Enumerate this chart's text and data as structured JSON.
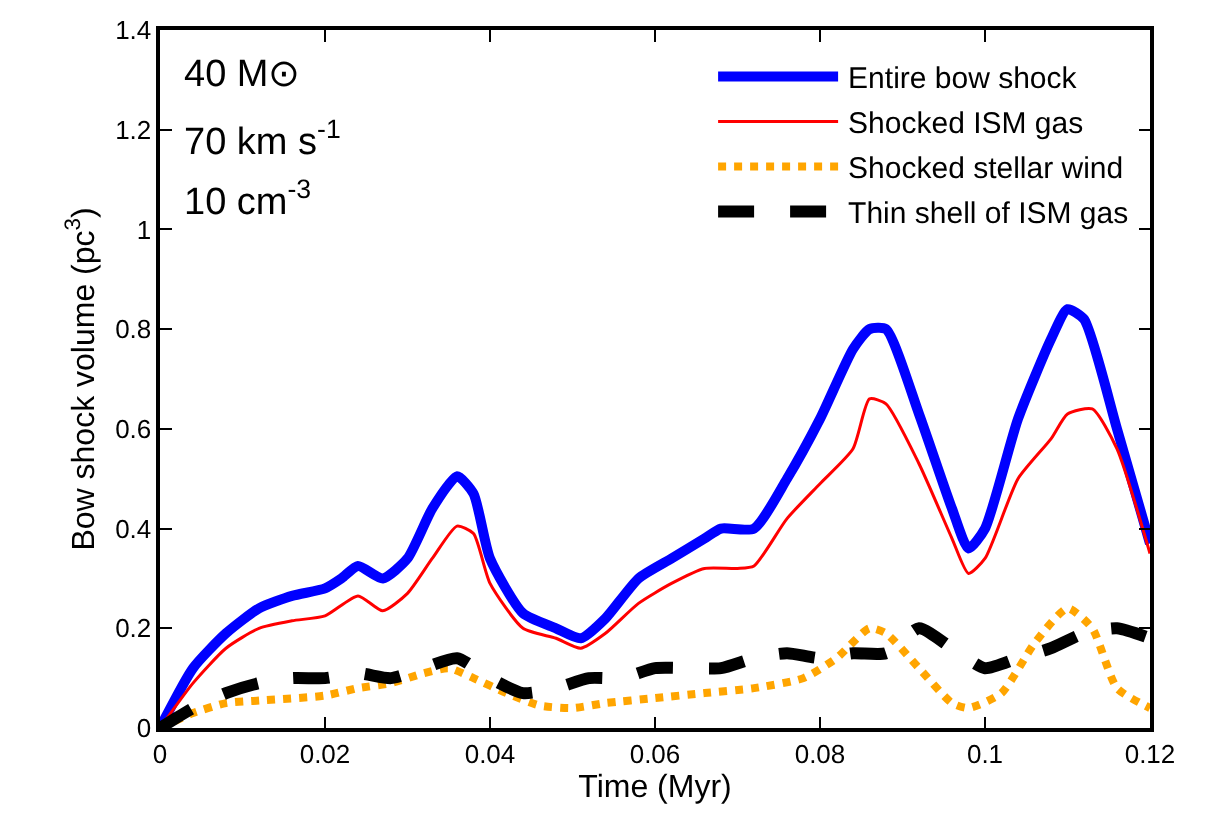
{
  "chart_data": {
    "type": "line",
    "xlabel": "Time (Myr)",
    "ylabel": "Bow shock volume (pc$^{3}$)",
    "xlim": [
      0,
      0.12
    ],
    "xticks": [
      0,
      0.02,
      0.04,
      0.06,
      0.08,
      0.1,
      0.12
    ],
    "ylim": [
      0,
      1.4
    ],
    "yticks": [
      0,
      0.2,
      0.4,
      0.6,
      0.8,
      1,
      1.2,
      1.4
    ],
    "legend": "top right",
    "marker": "none",
    "annotations": [
      "40 M⊙",
      "70 km s$^{-1}$",
      "10 cm$^{-3}$"
    ],
    "series": [
      {
        "name": "Entire bow shock",
        "color": "#0000ff",
        "line_style": "solid",
        "x": [
          0,
          0.004,
          0.008,
          0.012,
          0.016,
          0.02,
          0.022,
          0.024,
          0.027,
          0.03,
          0.033,
          0.036,
          0.038,
          0.04,
          0.044,
          0.048,
          0.051,
          0.054,
          0.058,
          0.062,
          0.066,
          0.068,
          0.072,
          0.076,
          0.08,
          0.084,
          0.086,
          0.088,
          0.092,
          0.096,
          0.098,
          0.1,
          0.104,
          0.108,
          0.11,
          0.112,
          0.116,
          0.12
        ],
        "values": [
          0,
          0.12,
          0.19,
          0.24,
          0.265,
          0.28,
          0.3,
          0.325,
          0.3,
          0.34,
          0.44,
          0.505,
          0.47,
          0.34,
          0.23,
          0.2,
          0.18,
          0.22,
          0.3,
          0.34,
          0.38,
          0.4,
          0.4,
          0.5,
          0.62,
          0.76,
          0.8,
          0.8,
          0.63,
          0.44,
          0.36,
          0.4,
          0.62,
          0.78,
          0.84,
          0.82,
          0.6,
          0.37
        ]
      },
      {
        "name": "Shocked ISM gas",
        "color": "#ff0000",
        "line_style": "solid",
        "x": [
          0,
          0.004,
          0.008,
          0.012,
          0.016,
          0.02,
          0.024,
          0.027,
          0.03,
          0.033,
          0.036,
          0.038,
          0.04,
          0.044,
          0.048,
          0.051,
          0.054,
          0.058,
          0.062,
          0.066,
          0.07,
          0.072,
          0.076,
          0.08,
          0.084,
          0.086,
          0.088,
          0.092,
          0.096,
          0.098,
          0.1,
          0.104,
          0.108,
          0.11,
          0.113,
          0.116,
          0.12
        ],
        "values": [
          0,
          0.09,
          0.16,
          0.2,
          0.215,
          0.225,
          0.265,
          0.235,
          0.27,
          0.34,
          0.405,
          0.39,
          0.29,
          0.2,
          0.18,
          0.16,
          0.19,
          0.25,
          0.29,
          0.32,
          0.32,
          0.325,
          0.42,
          0.49,
          0.56,
          0.66,
          0.65,
          0.53,
          0.38,
          0.31,
          0.34,
          0.5,
          0.58,
          0.63,
          0.64,
          0.56,
          0.35
        ]
      },
      {
        "name": "Shocked stellar wind",
        "color": "#ffa500",
        "line_style": "dotted",
        "x": [
          0,
          0.004,
          0.008,
          0.012,
          0.02,
          0.024,
          0.028,
          0.032,
          0.035,
          0.038,
          0.042,
          0.046,
          0.05,
          0.054,
          0.06,
          0.066,
          0.072,
          0.078,
          0.082,
          0.086,
          0.088,
          0.092,
          0.096,
          0.098,
          0.102,
          0.106,
          0.11,
          0.113,
          0.116,
          0.12
        ],
        "values": [
          0,
          0.03,
          0.05,
          0.055,
          0.065,
          0.08,
          0.09,
          0.11,
          0.12,
          0.1,
          0.07,
          0.045,
          0.04,
          0.05,
          0.06,
          0.07,
          0.08,
          0.1,
          0.14,
          0.2,
          0.19,
          0.12,
          0.05,
          0.04,
          0.07,
          0.17,
          0.24,
          0.2,
          0.08,
          0.04
        ]
      },
      {
        "name": "Thin shell of ISM gas",
        "color": "#000000",
        "line_style": "dashed",
        "x": [
          0,
          0.004,
          0.008,
          0.012,
          0.016,
          0.02,
          0.024,
          0.028,
          0.032,
          0.036,
          0.04,
          0.044,
          0.048,
          0.052,
          0.056,
          0.06,
          0.064,
          0.068,
          0.072,
          0.076,
          0.08,
          0.084,
          0.088,
          0.092,
          0.096,
          0.1,
          0.104,
          0.108,
          0.112,
          0.116,
          0.12
        ],
        "values": [
          0,
          0.04,
          0.07,
          0.09,
          0.1,
          0.1,
          0.11,
          0.1,
          0.12,
          0.14,
          0.1,
          0.07,
          0.08,
          0.1,
          0.1,
          0.12,
          0.12,
          0.12,
          0.14,
          0.15,
          0.14,
          0.15,
          0.15,
          0.2,
          0.16,
          0.12,
          0.14,
          0.16,
          0.19,
          0.2,
          0.18
        ]
      }
    ]
  }
}
